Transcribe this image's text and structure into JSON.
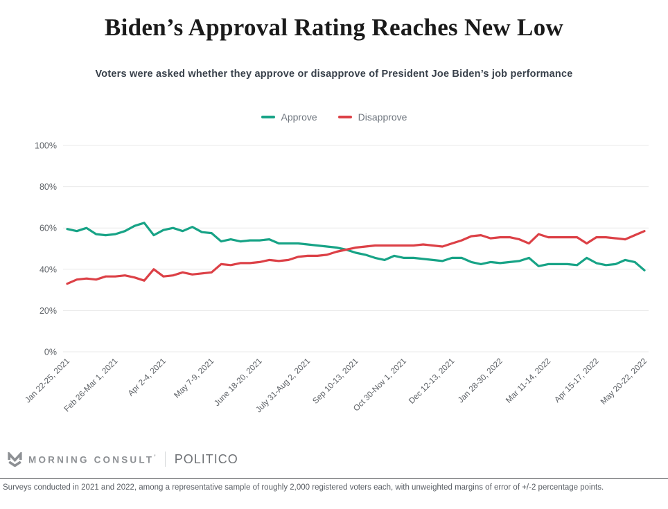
{
  "header": {
    "title": "Biden’s Approval Rating Reaches New Low",
    "subtitle": "Voters were asked whether they approve or disapprove of President Joe Biden’s job performance"
  },
  "chart_data": {
    "type": "line",
    "title": "Biden’s Approval Rating Reaches New Low",
    "x_tick_labels": [
      "Jan 22-25, 2021",
      "Feb 26-Mar 1, 2021",
      "Apr 2-4, 2021",
      "May 7-9, 2021",
      "June 18-20, 2021",
      "July 31-Aug 2, 2021",
      "Sep 10-13, 2021",
      "Oct 30-Nov 1, 2021",
      "Dec 12-13, 2021",
      "Jan 28-30, 2022",
      "Mar 11-14, 2022",
      "Apr 15-17, 2022",
      "May 20-22, 2022"
    ],
    "label_every": 5,
    "y_tick_values": [
      0,
      20,
      40,
      60,
      80,
      100
    ],
    "y_tick_labels": [
      "0%",
      "20%",
      "40%",
      "60%",
      "80%",
      "100%"
    ],
    "ylim": [
      0,
      100
    ],
    "grid": "horizontal",
    "legend_position": "top-center",
    "series": [
      {
        "name": "Approve",
        "color": "#17A386",
        "values": [
          59.5,
          58.5,
          60,
          57,
          56.5,
          57,
          58.5,
          61,
          62.5,
          56.5,
          59,
          60,
          58.5,
          60.5,
          58,
          57.5,
          53.5,
          54.5,
          53.5,
          54,
          54,
          54.5,
          52.5,
          52.5,
          52.5,
          52,
          51.5,
          51,
          50.5,
          49.5,
          48,
          47,
          45.5,
          44.5,
          46.5,
          45.5,
          45.5,
          45,
          44.5,
          44,
          45.5,
          45.5,
          43.5,
          42.5,
          43.5,
          43,
          43.5,
          44,
          45.5,
          41.5,
          42.5,
          42.5,
          42.5,
          42,
          45.5,
          43,
          42,
          42.5,
          44.5,
          43.5,
          39.5
        ]
      },
      {
        "name": "Disapprove",
        "color": "#DC4046",
        "values": [
          33,
          35,
          35.5,
          35,
          36.5,
          36.5,
          37,
          36,
          34.5,
          40,
          36.5,
          37,
          38.5,
          37.5,
          38,
          38.5,
          42.5,
          42,
          43,
          43,
          43.5,
          44.5,
          44,
          44.5,
          46,
          46.5,
          46.5,
          47,
          48.5,
          49.5,
          50.5,
          51,
          51.5,
          51.5,
          51.5,
          51.5,
          51.5,
          52,
          51.5,
          51,
          52.5,
          54,
          56,
          56.5,
          55,
          55.5,
          55.5,
          54.5,
          52.5,
          57,
          55.5,
          55.5,
          55.5,
          55.5,
          52.5,
          55.5,
          55.5,
          55,
          54.5,
          56.5,
          58.5
        ]
      }
    ]
  },
  "footer": {
    "morning_consult_label": "MORNING CONSULT",
    "trademark_mark": "’",
    "politico_label": "POLITICO",
    "footnote": "Surveys conducted in 2021 and 2022, among a representative sample of roughly 2,000 registered voters each, with unweighted margins of error of +/-2 percentage points."
  }
}
